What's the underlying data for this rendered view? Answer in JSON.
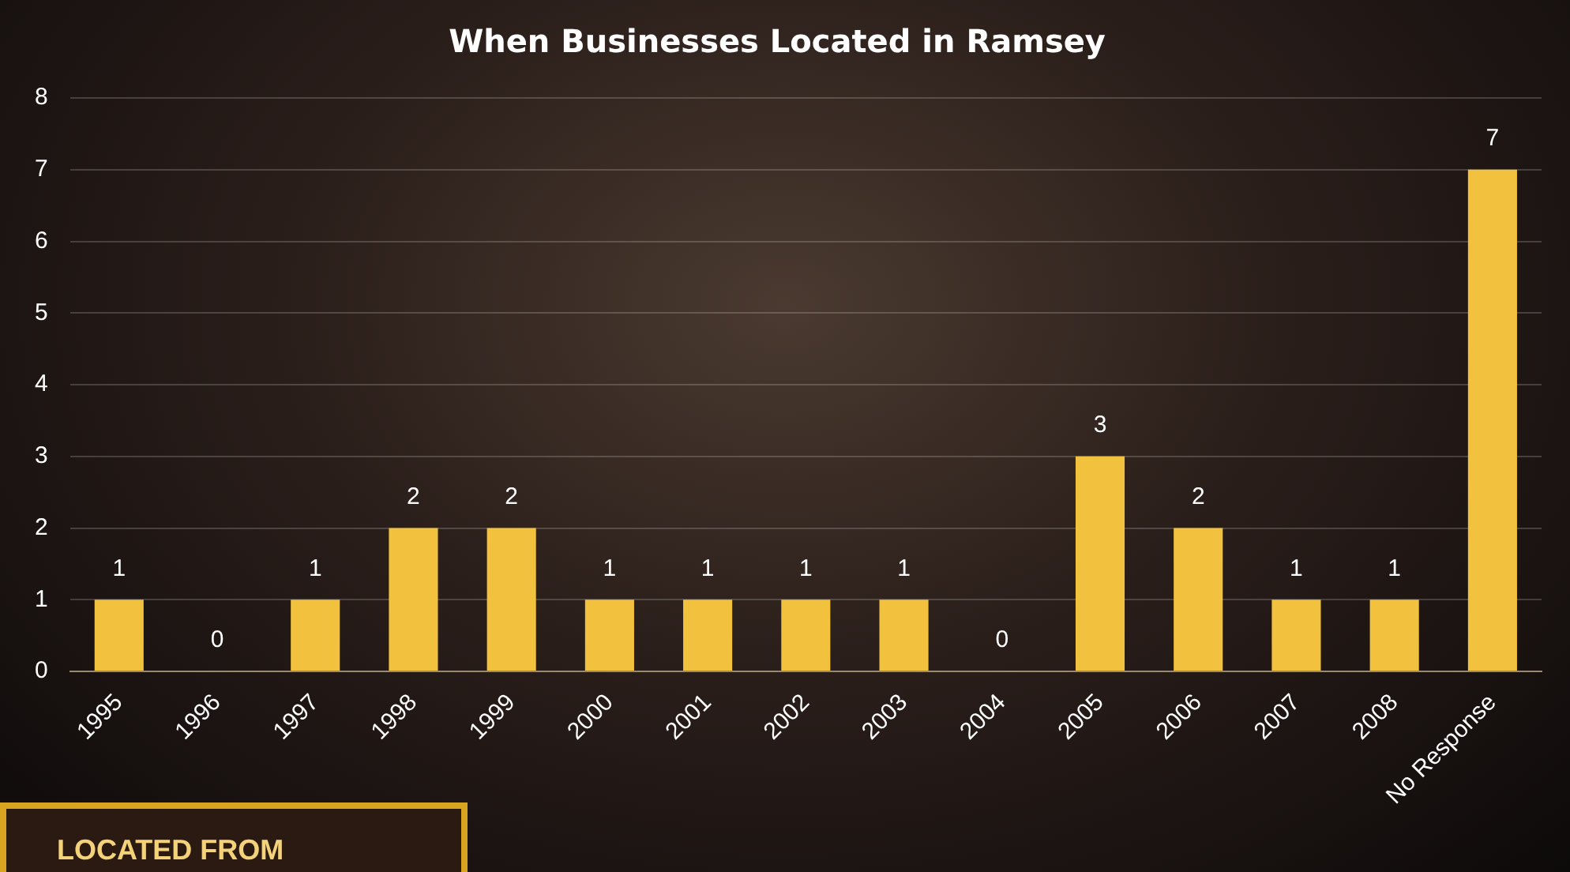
{
  "chart_data": {
    "type": "bar",
    "title": "When Businesses Located in Ramsey",
    "categories": [
      "1995",
      "1996",
      "1997",
      "1998",
      "1999",
      "2000",
      "2001",
      "2002",
      "2003",
      "2004",
      "2005",
      "2006",
      "2007",
      "2008",
      "No Response"
    ],
    "values": [
      1,
      0,
      1,
      2,
      2,
      1,
      1,
      1,
      1,
      0,
      3,
      2,
      1,
      1,
      7
    ],
    "color": "#f2c23e",
    "ylim": [
      0,
      8
    ],
    "yticks": [
      0,
      1,
      2,
      3,
      4,
      5,
      6,
      7,
      8
    ],
    "grid": "y",
    "legend": false,
    "data_labels": true,
    "annotations": [
      "LOCATED FROM"
    ]
  }
}
